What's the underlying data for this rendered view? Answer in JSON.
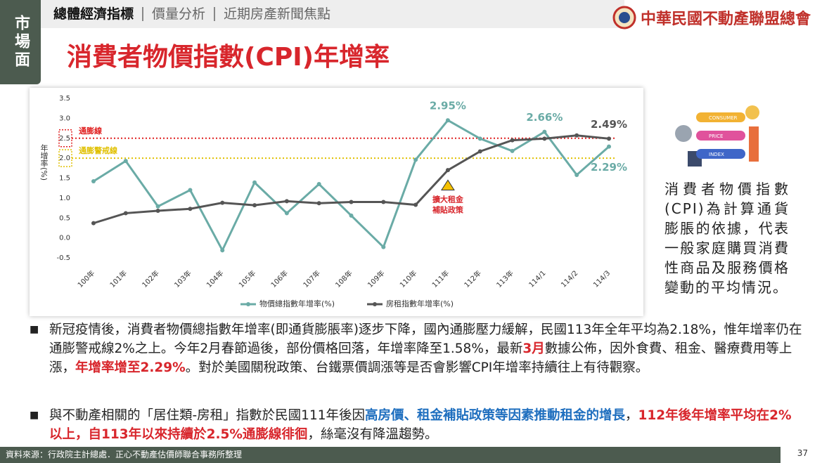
{
  "header": {
    "tab": "市場面",
    "nav": [
      "總體經濟指標",
      "價量分析",
      "近期房產新聞焦點"
    ],
    "logo": "中華民國不動產聯盟總會",
    "title": "消費者物價指數(CPI)年增率"
  },
  "chart_data": {
    "type": "line",
    "y_label": "年增率(%)",
    "categories": [
      "100年",
      "101年",
      "102年",
      "103年",
      "104年",
      "105年",
      "106年",
      "107年",
      "108年",
      "109年",
      "110年",
      "111年",
      "112年",
      "113年",
      "114/1",
      "114/2",
      "114/3"
    ],
    "series": [
      {
        "name": "物價總指數年增率(%)",
        "color": "#6aaba6",
        "values": [
          1.42,
          1.93,
          0.79,
          1.2,
          -0.31,
          1.39,
          0.62,
          1.35,
          0.56,
          -0.23,
          1.96,
          2.95,
          2.49,
          2.18,
          2.66,
          1.58,
          2.29
        ],
        "value_labels": [
          null,
          null,
          null,
          null,
          null,
          null,
          null,
          null,
          null,
          null,
          null,
          "2.95%",
          null,
          null,
          "2.66%",
          null,
          "2.29%"
        ]
      },
      {
        "name": "房租指數年增率(%)",
        "color": "#555555",
        "values": [
          0.37,
          0.62,
          0.68,
          0.73,
          0.88,
          0.82,
          0.92,
          0.87,
          0.9,
          0.9,
          0.83,
          1.7,
          2.17,
          2.45,
          2.49,
          2.57,
          2.49
        ],
        "value_labels": [
          null,
          null,
          null,
          null,
          null,
          null,
          null,
          null,
          null,
          null,
          null,
          null,
          null,
          null,
          null,
          null,
          "2.49%"
        ]
      }
    ],
    "ylim": [
      -0.5,
      3.5
    ],
    "yticks": [
      3.5,
      {
        "value": 3,
        "label": "3.0"
      },
      2.5,
      {
        "value": 2,
        "label": "2.0"
      },
      1.5,
      {
        "value": 1,
        "label": "1.0"
      },
      0.5,
      {
        "value": 0,
        "label": "0.0"
      },
      -0.5
    ],
    "reference_lines": [
      {
        "label": "通膨線",
        "value": 2.5,
        "color": "#e02020"
      },
      {
        "label": "通膨警戒線",
        "value": 2.0,
        "color": "#e0c000"
      }
    ],
    "annotation": [
      "擴大租金",
      "補貼政策"
    ]
  },
  "illustration": [
    "CONSUMER",
    "PRICE",
    "INDEX"
  ],
  "description": "消費者物價指數(CPI)為計算通貨膨脹的依據，代表一般家庭購買消費性商品及服務價格變動的平均情況。",
  "bullets": [
    [
      {
        "text": "新冠疫情後，消費者物價總指數年增率(即通貨膨脹率)逐步下降，國內通膨壓力緩解，民國113年全年平均為2.18%，惟年增率仍在通膨警戒線2%之上。今年2月春節過後，部份價格回落，年增率降至1.58%，最新"
      },
      {
        "text": "3月",
        "color": "#d8262c"
      },
      {
        "text": "數據公佈，因外食費、租金、醫療費用等上漲，"
      },
      {
        "text": "年增率增至2.29%",
        "color": "#d8262c"
      },
      {
        "text": "。對於美國關稅政策、台鐵票價調漲等是否會影響CPI年增率持續往上有待觀察。"
      }
    ],
    [
      {
        "text": "與不動產相關的「居住類-房租」指數於民國111年後因"
      },
      {
        "text": "高房價、租金補貼政策等因素推動租金的增長",
        "color": "#1f6fbf"
      },
      {
        "text": "，"
      },
      {
        "text": "112年後年增率平均在2%以上，自113年以來持續於2.5%通膨線徘徊",
        "color": "#d8262c"
      },
      {
        "text": "，絲毫沒有降溫趨勢。"
      }
    ]
  ],
  "footer": {
    "source": "資料來源：行政院主計總處．正心不動產估價師聯合事務所整理",
    "page": "37"
  }
}
